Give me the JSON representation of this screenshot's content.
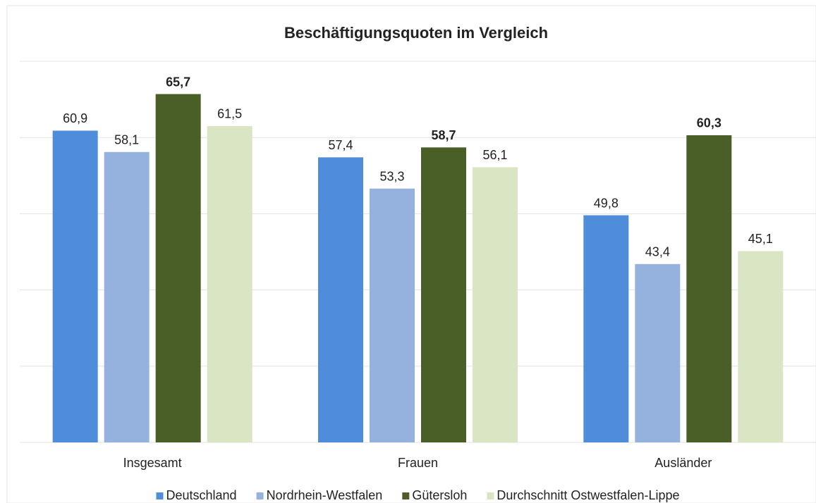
{
  "chart_data": {
    "type": "bar",
    "title": "Beschäftigungsquoten im Vergleich",
    "categories": [
      "Insgesamt",
      "Frauen",
      "Ausländer"
    ],
    "series": [
      {
        "name": "Deutschland",
        "color": "#4f8ddb",
        "values": [
          60.9,
          57.4,
          49.8
        ],
        "value_labels": [
          "60,9",
          "57,4",
          "49,8"
        ],
        "bold_labels": false
      },
      {
        "name": "Nordrhein-Westfalen",
        "color": "#95b2de",
        "values": [
          58.1,
          53.3,
          43.4
        ],
        "value_labels": [
          "58,1",
          "53,3",
          "43,4"
        ],
        "bold_labels": false
      },
      {
        "name": "Gütersloh",
        "color": "#4a5e27",
        "values": [
          65.7,
          58.7,
          60.3
        ],
        "value_labels": [
          "65,7",
          "58,7",
          "60,3"
        ],
        "bold_labels": true
      },
      {
        "name": "Durchschnitt Ostwestfalen-Lippe",
        "color": "#d9e5c3",
        "values": [
          61.5,
          56.1,
          45.1
        ],
        "value_labels": [
          "61,5",
          "56,1",
          "45,1"
        ],
        "bold_labels": false
      }
    ],
    "ylim": [
      20,
      70
    ],
    "yticks": [
      20,
      30,
      40,
      50,
      60,
      70
    ],
    "grid": true,
    "legend": "bottom"
  }
}
